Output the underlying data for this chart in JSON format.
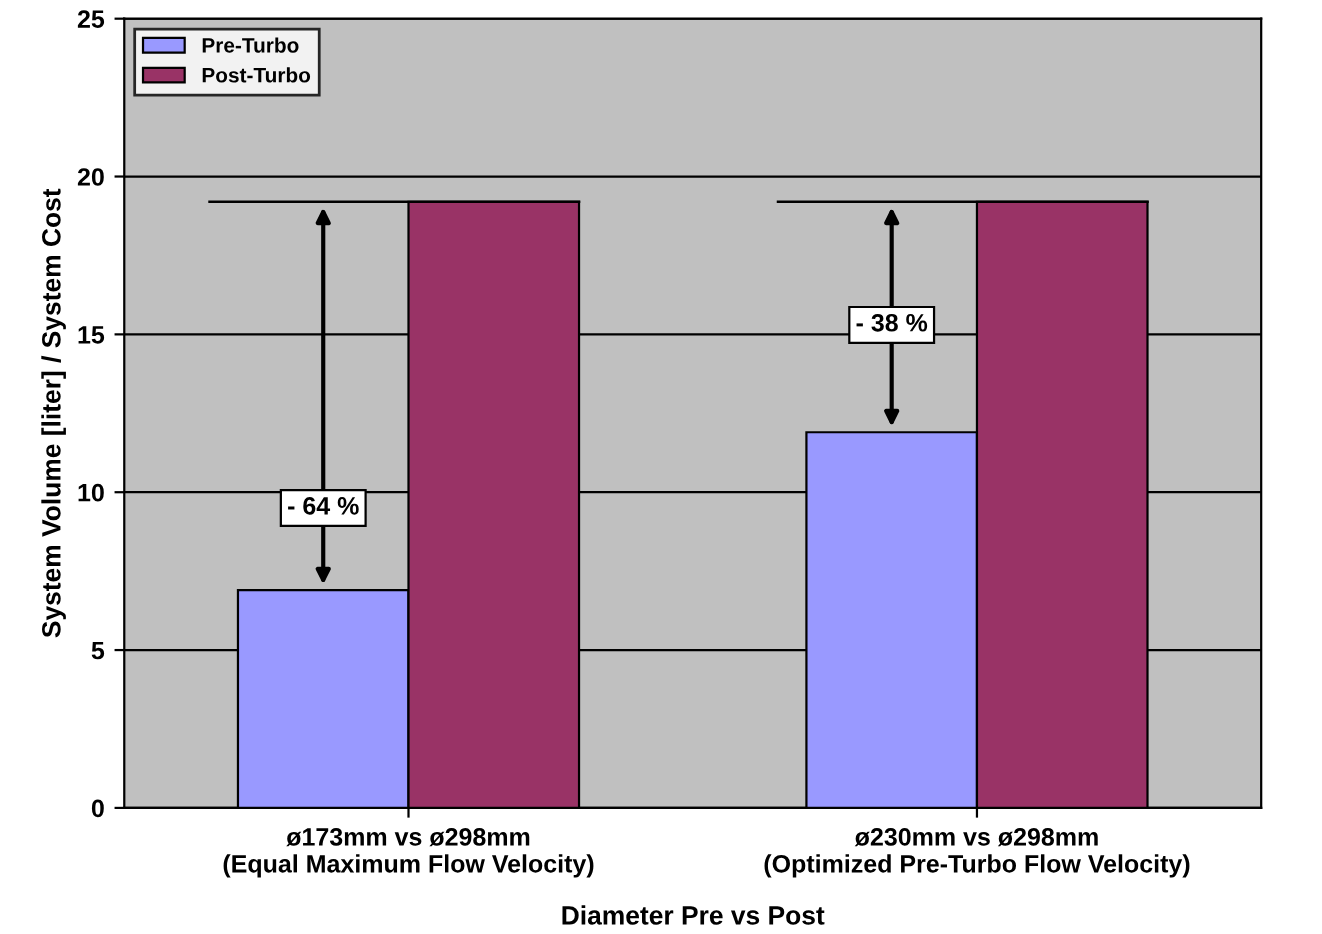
{
  "chart_data": {
    "type": "bar",
    "xlabel": "Diameter Pre vs Post",
    "ylabel": "System Volume [liter] / System Cost",
    "categories": [
      "ø173mm vs ø298mm\n(Equal Maximum Flow Velocity)",
      "ø230mm vs ø298mm\n(Optimized Pre-Turbo Flow Velocity)"
    ],
    "series": [
      {
        "name": "Pre-Turbo",
        "color": "#9999ff",
        "values": [
          6.9,
          11.9
        ]
      },
      {
        "name": "Post-Turbo",
        "color": "#993366",
        "values": [
          19.2,
          19.2
        ]
      }
    ],
    "ylim": [
      0,
      25
    ],
    "yticks": [
      0,
      5,
      10,
      15,
      20,
      25
    ],
    "grid": "y",
    "legend": "top left",
    "annotations": [
      {
        "text": "- 64 %",
        "x": "ø173mm vs ø298mm\n(Equal Maximum Flow Velocity)",
        "y": 9.5
      },
      {
        "text": "- 38 %",
        "x": "ø230mm vs ø298mm\n(Optimized Pre-Turbo Flow Velocity)",
        "y": 15.3
      }
    ]
  }
}
